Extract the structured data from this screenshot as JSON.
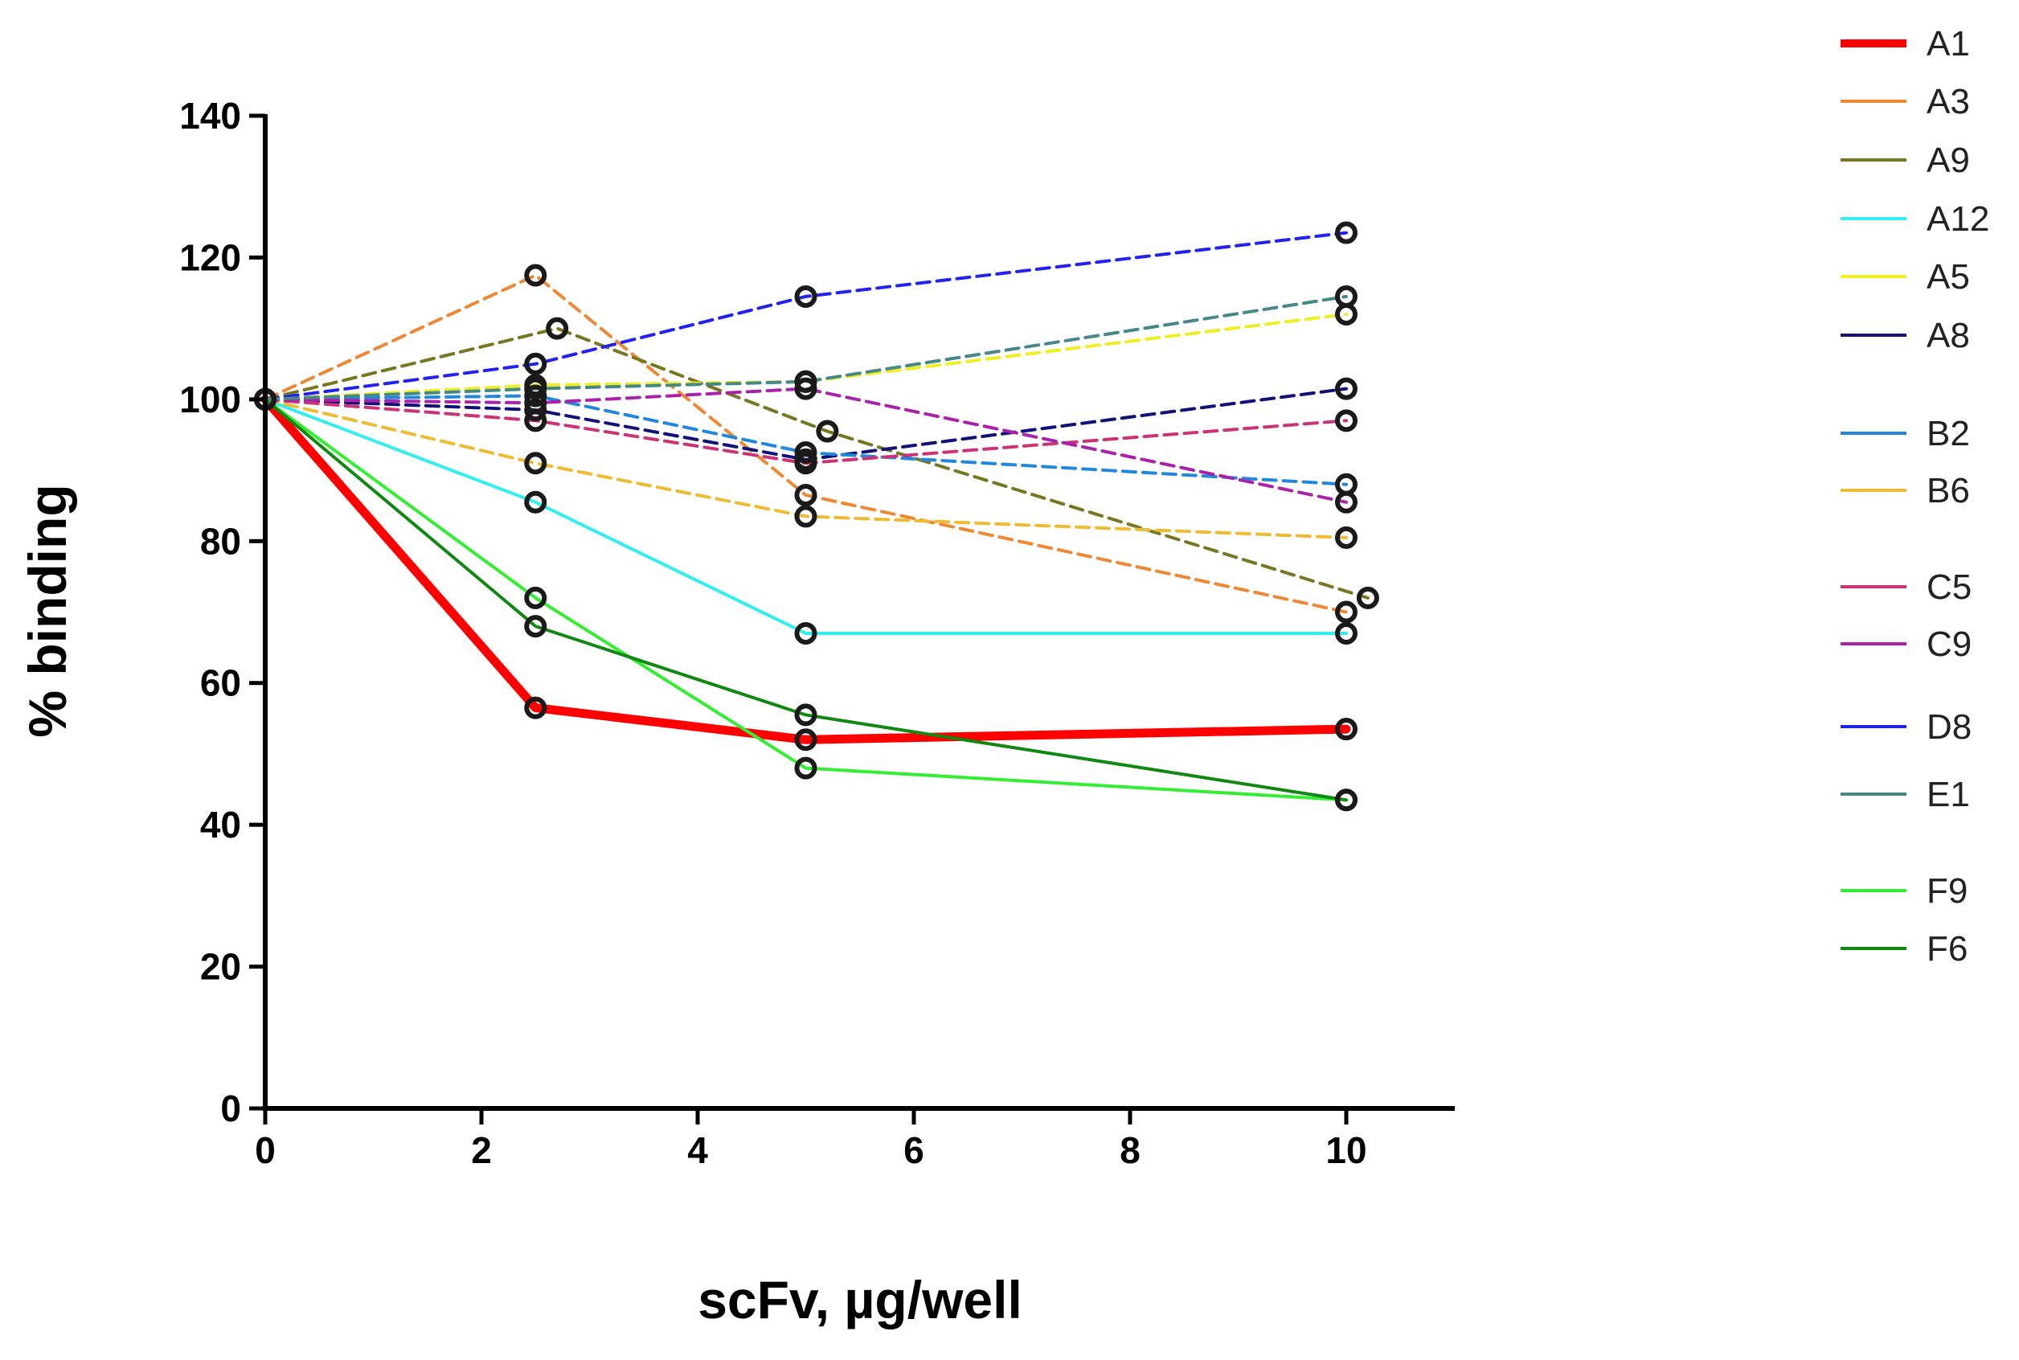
{
  "chart_data": {
    "type": "line",
    "title": "",
    "xlabel": "scFv, µg/well",
    "ylabel": "% binding",
    "xlim": [
      0,
      11
    ],
    "ylim": [
      0,
      140
    ],
    "xticks": [
      0,
      2,
      4,
      6,
      8,
      10
    ],
    "yticks": [
      0,
      20,
      40,
      60,
      80,
      100,
      120,
      140
    ],
    "grid": false,
    "legend_position": "right",
    "series": [
      {
        "name": "A1",
        "color": "#ff0000",
        "style": "solid",
        "weight": "thick",
        "x": [
          0,
          2.5,
          5,
          10
        ],
        "y": [
          100,
          56.5,
          52,
          53.5
        ]
      },
      {
        "name": "A3",
        "color": "#ee8833",
        "style": "dashed",
        "weight": "normal",
        "x": [
          0,
          2.5,
          5,
          10
        ],
        "y": [
          100,
          117.5,
          86.5,
          70
        ]
      },
      {
        "name": "A9",
        "color": "#777722",
        "style": "dashed",
        "weight": "normal",
        "x": [
          0,
          2.7,
          5.2,
          10.2
        ],
        "y": [
          100,
          110,
          95.5,
          72
        ]
      },
      {
        "name": "A12",
        "color": "#33eeee",
        "style": "solid",
        "weight": "normal",
        "x": [
          0,
          2.5,
          5,
          10
        ],
        "y": [
          100,
          85.5,
          67,
          67
        ]
      },
      {
        "name": "A5",
        "color": "#eeee22",
        "style": "dashed",
        "weight": "normal",
        "x": [
          0,
          2.5,
          5,
          10
        ],
        "y": [
          100,
          102,
          102.5,
          112
        ]
      },
      {
        "name": "A8",
        "color": "#111177",
        "style": "dashed",
        "weight": "normal",
        "x": [
          0,
          2.5,
          5,
          10
        ],
        "y": [
          100,
          98.5,
          91.5,
          101.5
        ]
      },
      {
        "name": "B2",
        "color": "#2288dd",
        "style": "dashed",
        "weight": "normal",
        "x": [
          0,
          2.5,
          5,
          10
        ],
        "y": [
          100,
          100.5,
          92.5,
          88
        ]
      },
      {
        "name": "B6",
        "color": "#eebb33",
        "style": "dashed",
        "weight": "normal",
        "x": [
          0,
          2.5,
          5,
          10
        ],
        "y": [
          100,
          91,
          83.5,
          80.5
        ]
      },
      {
        "name": "C5",
        "color": "#cc3377",
        "style": "dashed",
        "weight": "normal",
        "x": [
          0,
          2.5,
          5,
          10
        ],
        "y": [
          100,
          97,
          91,
          97
        ]
      },
      {
        "name": "C9",
        "color": "#aa22aa",
        "style": "dashed",
        "weight": "normal",
        "x": [
          0,
          2.5,
          5,
          10
        ],
        "y": [
          100,
          99.5,
          101.5,
          85.5
        ]
      },
      {
        "name": "D8",
        "color": "#2222ee",
        "style": "dashed",
        "weight": "normal",
        "x": [
          0,
          2.5,
          5,
          10
        ],
        "y": [
          100,
          105,
          114.5,
          123.5
        ]
      },
      {
        "name": "E1",
        "color": "#448888",
        "style": "dashed",
        "weight": "normal",
        "x": [
          0,
          2.5,
          5,
          10
        ],
        "y": [
          100,
          101.5,
          102.5,
          114.5
        ]
      },
      {
        "name": "F9",
        "color": "#33ee33",
        "style": "solid",
        "weight": "normal",
        "x": [
          0,
          2.5,
          5,
          10
        ],
        "y": [
          100,
          72,
          48,
          43.5
        ]
      },
      {
        "name": "F6",
        "color": "#118811",
        "style": "solid",
        "weight": "normal",
        "x": [
          0,
          2.5,
          5,
          10
        ],
        "y": [
          100,
          68,
          55.5,
          43.5
        ]
      }
    ]
  }
}
